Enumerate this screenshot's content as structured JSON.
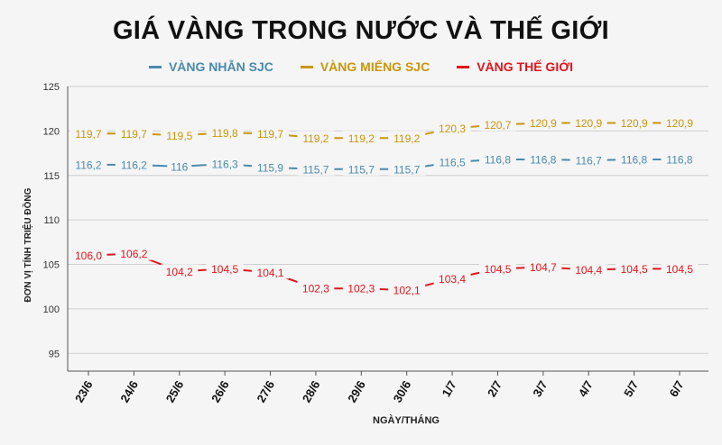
{
  "chart_data": {
    "type": "line",
    "title": "GIÁ VÀNG TRONG NƯỚC VÀ THẾ GIỚI",
    "xlabel": "NGÀY/THÁNG",
    "ylabel": "ĐƠN VỊ TÍNH TRIỆU ĐỒNG",
    "ylim": [
      93,
      125
    ],
    "yticks": [
      "95",
      "100",
      "105",
      "110",
      "115",
      "120",
      "125"
    ],
    "grid": true,
    "legend_position": "top-center",
    "categories": [
      "23/6",
      "24/6",
      "25/6",
      "26/6",
      "27/6",
      "28/6",
      "29/6",
      "30/6",
      "1/7",
      "2/7",
      "3/7",
      "4/7",
      "5/7",
      "6/7"
    ],
    "series": [
      {
        "name": "VÀNG NHẪN SJC",
        "color": "#4a8aad",
        "values": [
          116.2,
          116.2,
          116.0,
          116.3,
          115.9,
          115.7,
          115.7,
          115.7,
          116.5,
          116.8,
          116.8,
          116.7,
          116.8,
          116.8
        ],
        "labels": [
          "116,2",
          "116,2",
          "116",
          "116,3",
          "115,9",
          "115,7",
          "115,7",
          "115,7",
          "116,5",
          "116,8",
          "116,8",
          "116,7",
          "116,8",
          "116,8"
        ]
      },
      {
        "name": "VÀNG MIẾNG SJC",
        "color": "#c9960c",
        "values": [
          119.7,
          119.7,
          119.5,
          119.8,
          119.7,
          119.2,
          119.2,
          119.2,
          120.3,
          120.7,
          120.9,
          120.9,
          120.9,
          120.9
        ],
        "labels": [
          "119,7",
          "119,7",
          "119,5",
          "119,8",
          "119,7",
          "119,2",
          "119,2",
          "119,2",
          "120,3",
          "120,7",
          "120,9",
          "120,9",
          "120,9",
          "120,9"
        ]
      },
      {
        "name": "VÀNG THẾ GIỚI",
        "color": "#e3141c",
        "values": [
          106.0,
          106.2,
          104.2,
          104.5,
          104.1,
          102.3,
          102.3,
          102.1,
          103.4,
          104.5,
          104.7,
          104.4,
          104.5,
          104.5
        ],
        "labels": [
          "106,0",
          "106,2",
          "104,2",
          "104,5",
          "104,1",
          "102,3",
          "102,3",
          "102,1",
          "103,4",
          "104,5",
          "104,7",
          "104,4",
          "104,5",
          "104,5"
        ]
      }
    ]
  }
}
